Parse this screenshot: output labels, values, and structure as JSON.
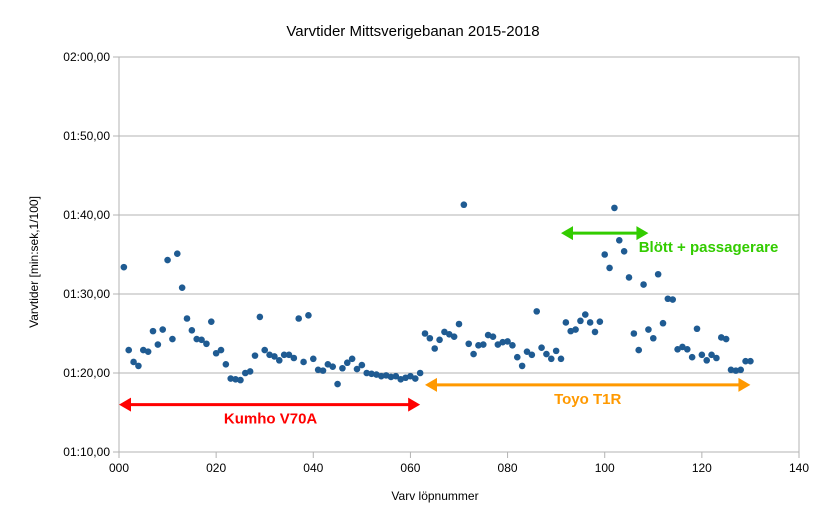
{
  "chart_data": {
    "type": "scatter",
    "title": "Varvtider Mittsverigebanan 2015-2018",
    "xlabel": "Varv löpnummer",
    "ylabel": "Varvtider [min:sek,1/100]",
    "xlim": [
      0,
      140
    ],
    "ylim": [
      70,
      120
    ],
    "x_ticks": [
      0,
      20,
      40,
      60,
      80,
      100,
      120,
      140
    ],
    "x_tick_labels": [
      "000",
      "020",
      "040",
      "060",
      "080",
      "100",
      "120",
      "140"
    ],
    "y_ticks": [
      70,
      80,
      90,
      100,
      110,
      120
    ],
    "y_tick_labels": [
      "01:10,00",
      "01:20,00",
      "01:30,00",
      "01:40,00",
      "01:50,00",
      "02:00,00"
    ],
    "grid": "horizontal",
    "marker_color": "#1f5b92",
    "series": [
      {
        "x": [
          1,
          2,
          3,
          4,
          5,
          6,
          7,
          8,
          9,
          10,
          11,
          12,
          13,
          14,
          15,
          16,
          17,
          18,
          19,
          20,
          21,
          22,
          23,
          24,
          25,
          26,
          27,
          28,
          29,
          30,
          31,
          32,
          33,
          34,
          35,
          36,
          37,
          38,
          39,
          40,
          41,
          42,
          43,
          44,
          45,
          46,
          47,
          48,
          49,
          50,
          51,
          52,
          53,
          54,
          55,
          56,
          57,
          58,
          59,
          60,
          61,
          62,
          63,
          64,
          65,
          66,
          67,
          68,
          69,
          70,
          71,
          72,
          73,
          74,
          75,
          76,
          77,
          78,
          79,
          80,
          81,
          82,
          83,
          84,
          85,
          86,
          87,
          88,
          89,
          90,
          91,
          92,
          93,
          94,
          95,
          96,
          97,
          98,
          99,
          100,
          101,
          102,
          103,
          104,
          105,
          106,
          107,
          108,
          109,
          110,
          111,
          112,
          113,
          114,
          115,
          116,
          117,
          118,
          119,
          120,
          121,
          122,
          123,
          124,
          125,
          126,
          127,
          128,
          129,
          130
        ],
        "y": [
          93.4,
          82.9,
          81.4,
          80.9,
          82.9,
          82.7,
          85.3,
          83.6,
          85.5,
          94.3,
          84.3,
          95.1,
          90.8,
          86.9,
          85.4,
          84.3,
          84.2,
          83.7,
          86.5,
          82.5,
          82.9,
          81.1,
          79.3,
          79.2,
          79.1,
          80.0,
          80.2,
          82.2,
          87.1,
          82.9,
          82.3,
          82.1,
          81.6,
          82.3,
          82.3,
          81.9,
          86.9,
          81.4,
          87.3,
          81.8,
          80.4,
          80.3,
          81.1,
          80.8,
          78.6,
          80.6,
          81.3,
          81.8,
          80.5,
          81.0,
          80.0,
          79.9,
          79.8,
          79.6,
          79.7,
          79.5,
          79.6,
          79.2,
          79.4,
          79.6,
          79.3,
          80.0,
          85.0,
          84.4,
          83.1,
          84.2,
          85.2,
          84.9,
          84.6,
          86.2,
          101.3,
          83.7,
          82.4,
          83.5,
          83.6,
          84.8,
          84.6,
          83.6,
          83.9,
          84.0,
          83.5,
          82.0,
          80.9,
          82.7,
          82.3,
          87.8,
          83.2,
          82.4,
          81.8,
          82.8,
          81.8,
          86.4,
          85.3,
          85.5,
          86.6,
          87.4,
          86.4,
          85.2,
          86.5,
          95.0,
          93.3,
          100.9,
          96.8,
          95.4,
          92.1,
          85.0,
          82.9,
          91.2,
          85.5,
          84.4,
          92.5,
          86.3,
          89.4,
          89.3,
          83.0,
          83.3,
          83.0,
          82.0,
          85.6,
          82.3,
          81.6,
          82.3,
          81.9,
          84.5,
          84.3,
          80.4,
          80.3,
          80.4,
          81.5,
          81.5
        ]
      }
    ],
    "annotations": [
      {
        "label": "Kumho V70A",
        "color": "#ff0000",
        "from": 0,
        "to": 62,
        "y": 76
      },
      {
        "label": "Toyo T1R",
        "color": "#ff9900",
        "from": 63,
        "to": 130,
        "y": 78.5
      },
      {
        "label": "Blött + passagerare",
        "color": "#33cc00",
        "from": 91,
        "to": 109,
        "y": 97.7
      }
    ]
  }
}
